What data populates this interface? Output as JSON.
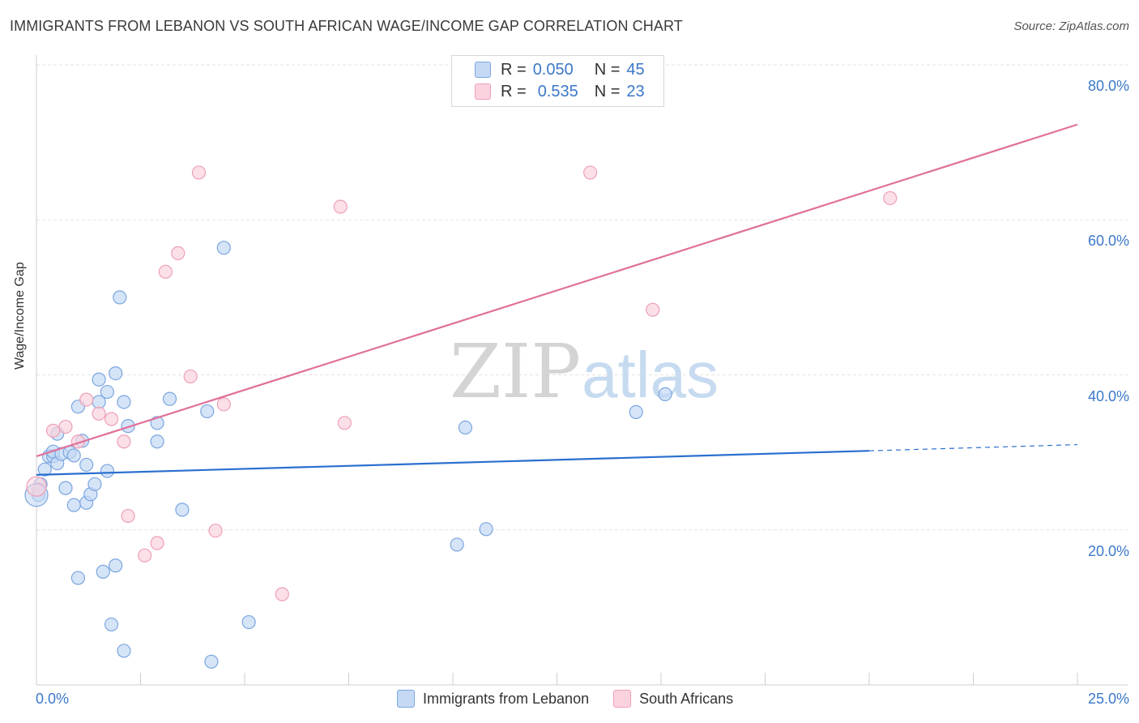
{
  "header": {
    "title": "IMMIGRANTS FROM LEBANON VS SOUTH AFRICAN WAGE/INCOME GAP CORRELATION CHART",
    "source": "Source: ZipAtlas.com"
  },
  "watermark": {
    "zip": "ZIP",
    "atlas": "atlas"
  },
  "legend_top": {
    "rows": [
      {
        "r_label": "R =",
        "r_value": "0.050",
        "n_label": "N =",
        "n_value": "45",
        "color": "#a9c8f0"
      },
      {
        "r_label": "R =",
        "r_value": "0.535",
        "n_label": "N =",
        "n_value": "23",
        "color": "#f7b8c8"
      }
    ]
  },
  "colors": {
    "blue_fill": "#c5d9f5",
    "blue_stroke": "#7aa6df",
    "blue_line": "#2a6fcf",
    "pink_fill": "#fad3de",
    "pink_stroke": "#ee9fb6",
    "pink_line": "#e0709a",
    "tick_text": "#3b78c9",
    "grid": "#e3e3e3"
  },
  "chart_data": {
    "type": "scatter",
    "title": "IMMIGRANTS FROM LEBANON VS SOUTH AFRICAN WAGE/INCOME GAP CORRELATION CHART",
    "xlabel": "",
    "ylabel": "Wage/Income Gap",
    "xlim": [
      0,
      25
    ],
    "ylim": [
      0,
      80
    ],
    "x_tick_labels": [
      "0.0%",
      "25.0%"
    ],
    "y_ticks": [
      20,
      40,
      60,
      80
    ],
    "y_tick_labels": [
      "20.0%",
      "40.0%",
      "60.0%",
      "80.0%"
    ],
    "grid": true,
    "legend_position": "bottom",
    "series": [
      {
        "name": "Immigrants from Lebanon",
        "color": "#a9c8f0",
        "trend": {
          "x": [
            0,
            20
          ],
          "y": [
            27.1,
            30.2
          ],
          "dashed_to": [
            25,
            31.0
          ]
        },
        "points": [
          [
            0.1,
            25.9
          ],
          [
            0.2,
            27.8
          ],
          [
            0.3,
            29.5
          ],
          [
            0.4,
            29.5
          ],
          [
            0.4,
            30.1
          ],
          [
            0.5,
            28.6
          ],
          [
            0.5,
            32.4
          ],
          [
            0.6,
            29.8
          ],
          [
            0.7,
            25.4
          ],
          [
            0.8,
            30.0
          ],
          [
            0.9,
            29.6
          ],
          [
            0.9,
            23.2
          ],
          [
            1.0,
            35.9
          ],
          [
            1.0,
            13.8
          ],
          [
            1.1,
            31.5
          ],
          [
            1.2,
            23.5
          ],
          [
            1.2,
            28.4
          ],
          [
            1.3,
            24.6
          ],
          [
            1.4,
            25.9
          ],
          [
            1.5,
            39.4
          ],
          [
            1.5,
            36.5
          ],
          [
            1.6,
            14.6
          ],
          [
            1.7,
            37.8
          ],
          [
            1.7,
            27.6
          ],
          [
            1.8,
            7.8
          ],
          [
            1.9,
            40.2
          ],
          [
            1.9,
            15.4
          ],
          [
            2.0,
            50.0
          ],
          [
            2.1,
            36.5
          ],
          [
            2.1,
            4.4
          ],
          [
            2.2,
            33.4
          ],
          [
            2.9,
            33.8
          ],
          [
            2.9,
            31.4
          ],
          [
            3.2,
            36.9
          ],
          [
            3.5,
            22.6
          ],
          [
            4.1,
            35.3
          ],
          [
            4.2,
            3.0
          ],
          [
            4.5,
            56.4
          ],
          [
            5.1,
            8.1
          ],
          [
            10.1,
            18.1
          ],
          [
            10.3,
            33.2
          ],
          [
            10.8,
            20.1
          ],
          [
            14.4,
            35.2
          ],
          [
            15.1,
            37.5
          ],
          [
            0.05,
            24.5
          ]
        ]
      },
      {
        "name": "South Africans",
        "color": "#f7b8c8",
        "trend": {
          "x": [
            0,
            25
          ],
          "y": [
            29.5,
            72.3
          ]
        },
        "points": [
          [
            0.05,
            25.2
          ],
          [
            0.4,
            32.8
          ],
          [
            0.7,
            33.3
          ],
          [
            1.0,
            31.4
          ],
          [
            1.2,
            36.8
          ],
          [
            1.5,
            35.0
          ],
          [
            1.8,
            34.3
          ],
          [
            2.1,
            31.4
          ],
          [
            2.2,
            21.8
          ],
          [
            2.6,
            16.7
          ],
          [
            2.9,
            18.3
          ],
          [
            3.1,
            53.3
          ],
          [
            3.4,
            55.7
          ],
          [
            3.7,
            39.8
          ],
          [
            3.9,
            66.1
          ],
          [
            4.3,
            19.9
          ],
          [
            4.5,
            36.2
          ],
          [
            5.9,
            11.7
          ],
          [
            7.3,
            61.7
          ],
          [
            7.4,
            33.8
          ],
          [
            13.3,
            66.1
          ],
          [
            14.8,
            48.4
          ],
          [
            20.5,
            62.8
          ]
        ]
      }
    ]
  }
}
